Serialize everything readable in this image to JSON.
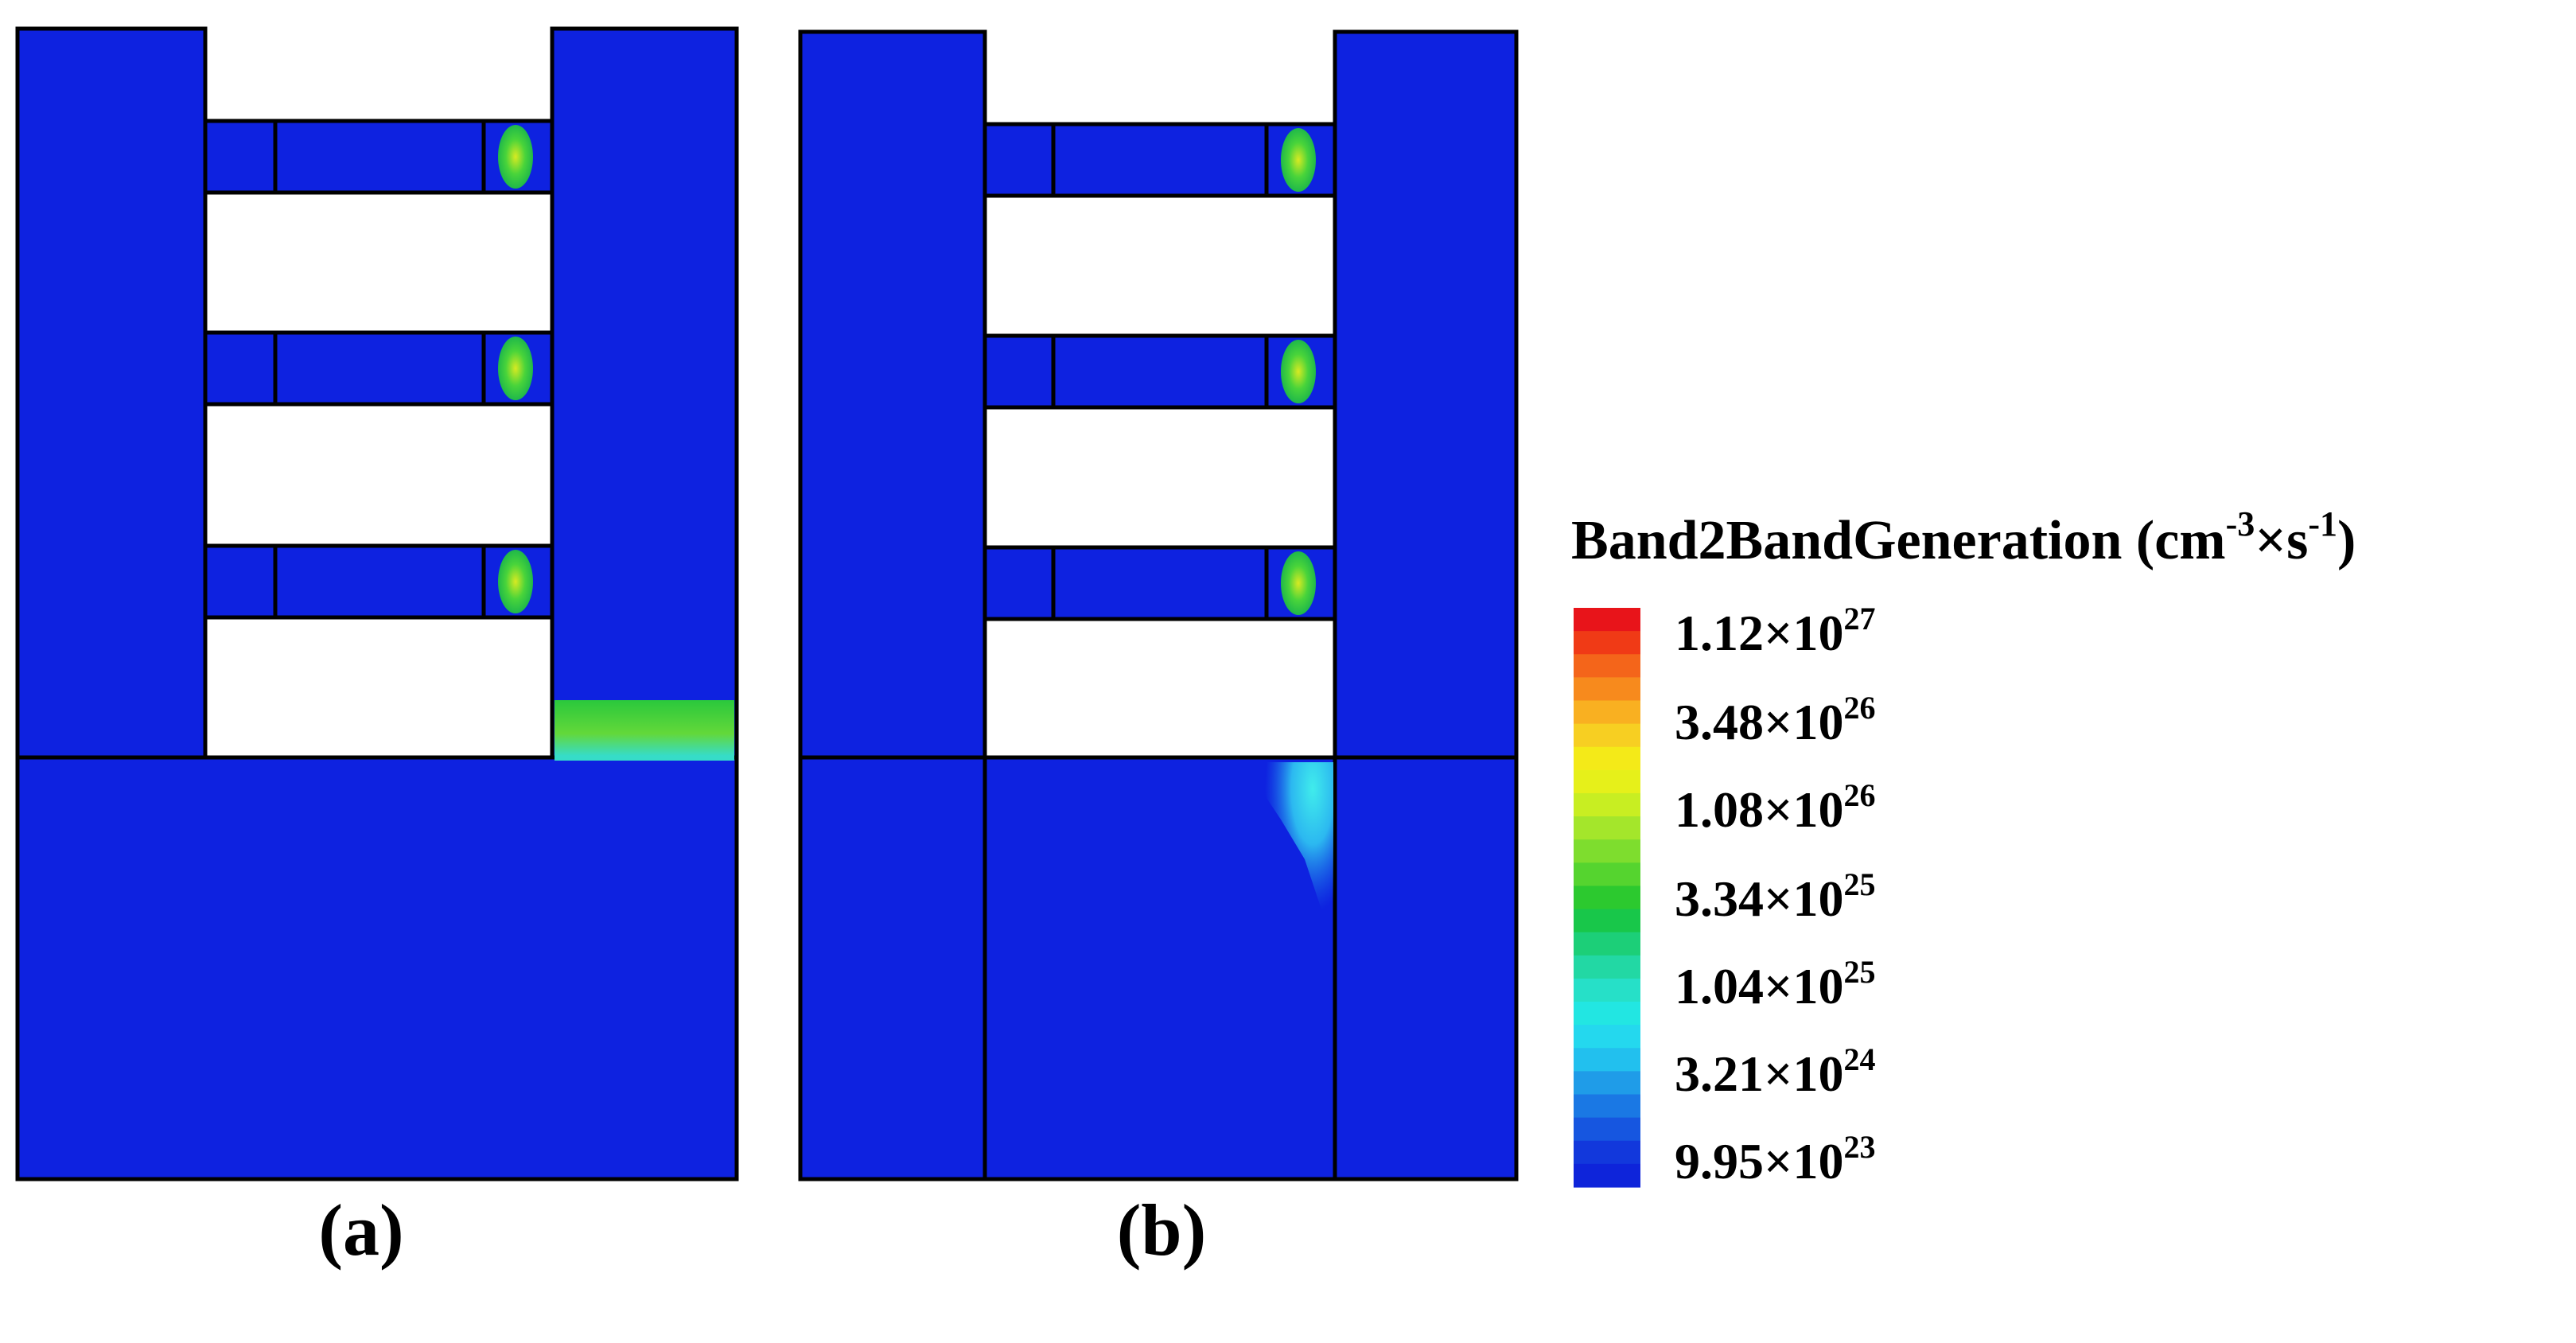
{
  "panels": [
    {
      "label": "(a)"
    },
    {
      "label": "(b)"
    }
  ],
  "legend": {
    "title_main": "Band2BandGeneration (cm",
    "title_exp1": "-3",
    "title_mid": "×s",
    "title_exp2": "-1",
    "title_end": ")",
    "ticks": [
      {
        "mantissa": "1.12×10",
        "exponent": "27"
      },
      {
        "mantissa": "3.48×10",
        "exponent": "26"
      },
      {
        "mantissa": "1.08×10",
        "exponent": "26"
      },
      {
        "mantissa": "3.34×10",
        "exponent": "25"
      },
      {
        "mantissa": "1.04×10",
        "exponent": "25"
      },
      {
        "mantissa": "3.21×10",
        "exponent": "24"
      },
      {
        "mantissa": "9.95×10",
        "exponent": "23"
      }
    ],
    "colors": [
      "#e8141a",
      "#f03a16",
      "#f4651a",
      "#f78a1d",
      "#f9b021",
      "#f7cf22",
      "#f4ea18",
      "#e6f01a",
      "#c8ee22",
      "#a4e62b",
      "#7edd2e",
      "#55d42f",
      "#2cc92f",
      "#18c74a",
      "#1ccf78",
      "#22d8a4",
      "#26e0c8",
      "#22e6e2",
      "#24d8ee",
      "#22c0ee",
      "#1f9ce8",
      "#1a78e4",
      "#1656e0",
      "#1238dc",
      "#0e24da"
    ]
  },
  "colors": {
    "background_blue": "#0e22e0",
    "gap_white": "#ffffff",
    "hotspot_green": "#49d43a",
    "hotspot_yellow": "#d8ea22",
    "hotspot_cyan": "#38e6e0"
  }
}
